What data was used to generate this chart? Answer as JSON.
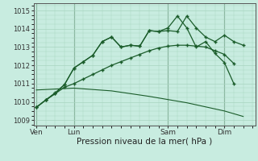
{
  "bg_color": "#c8ece0",
  "grid_color": "#a8d4c0",
  "line_color": "#1a5c2a",
  "ylim": [
    1008.7,
    1015.4
  ],
  "yticks": [
    1009,
    1010,
    1011,
    1012,
    1013,
    1014,
    1015
  ],
  "xlabel": "Pression niveau de la mer( hPa )",
  "xtick_labels": [
    "Ven",
    "Lun",
    "Sam",
    "Dim"
  ],
  "xtick_positions": [
    0,
    4,
    14,
    20
  ],
  "vline_positions": [
    0,
    4,
    14,
    20
  ],
  "total_xlim": [
    -0.3,
    23.3
  ],
  "line1_x": [
    0,
    1,
    2,
    3,
    4,
    5,
    6,
    7,
    8,
    9,
    10,
    11,
    12,
    13,
    14,
    15,
    16,
    17,
    18,
    19,
    20,
    21,
    22
  ],
  "line1_y": [
    1009.7,
    1010.1,
    1010.5,
    1010.95,
    1011.85,
    1012.2,
    1012.55,
    1013.3,
    1013.55,
    1013.0,
    1013.1,
    1013.05,
    1013.9,
    1013.85,
    1013.9,
    1013.85,
    1014.7,
    1014.05,
    1013.55,
    1013.3,
    1013.65,
    1013.3,
    1013.1
  ],
  "line2_x": [
    0,
    1,
    2,
    3,
    4,
    5,
    6,
    7,
    8,
    9,
    10,
    11,
    12,
    13,
    14,
    15,
    16,
    17,
    18,
    19,
    20,
    21
  ],
  "line2_y": [
    1009.7,
    1010.1,
    1010.45,
    1010.95,
    1011.85,
    1012.2,
    1012.55,
    1013.3,
    1013.55,
    1013.0,
    1013.1,
    1013.05,
    1013.9,
    1013.85,
    1014.05,
    1014.7,
    1014.05,
    1013.0,
    1013.3,
    1012.65,
    1012.15,
    1011.0
  ],
  "line3_x": [
    0,
    1,
    2,
    3,
    4,
    5,
    6,
    7,
    8,
    9,
    10,
    11,
    12,
    13,
    14,
    15,
    16,
    17,
    18,
    19,
    20,
    21
  ],
  "line3_y": [
    1009.7,
    1010.1,
    1010.45,
    1010.8,
    1011.0,
    1011.25,
    1011.5,
    1011.75,
    1012.0,
    1012.2,
    1012.4,
    1012.6,
    1012.8,
    1012.95,
    1013.05,
    1013.1,
    1013.1,
    1013.05,
    1013.0,
    1012.8,
    1012.6,
    1012.1
  ],
  "line4_x": [
    0,
    4,
    8,
    12,
    16,
    20,
    22
  ],
  "line4_y": [
    1010.65,
    1010.75,
    1010.6,
    1010.3,
    1009.95,
    1009.5,
    1009.2
  ],
  "marker_size": 2.5
}
